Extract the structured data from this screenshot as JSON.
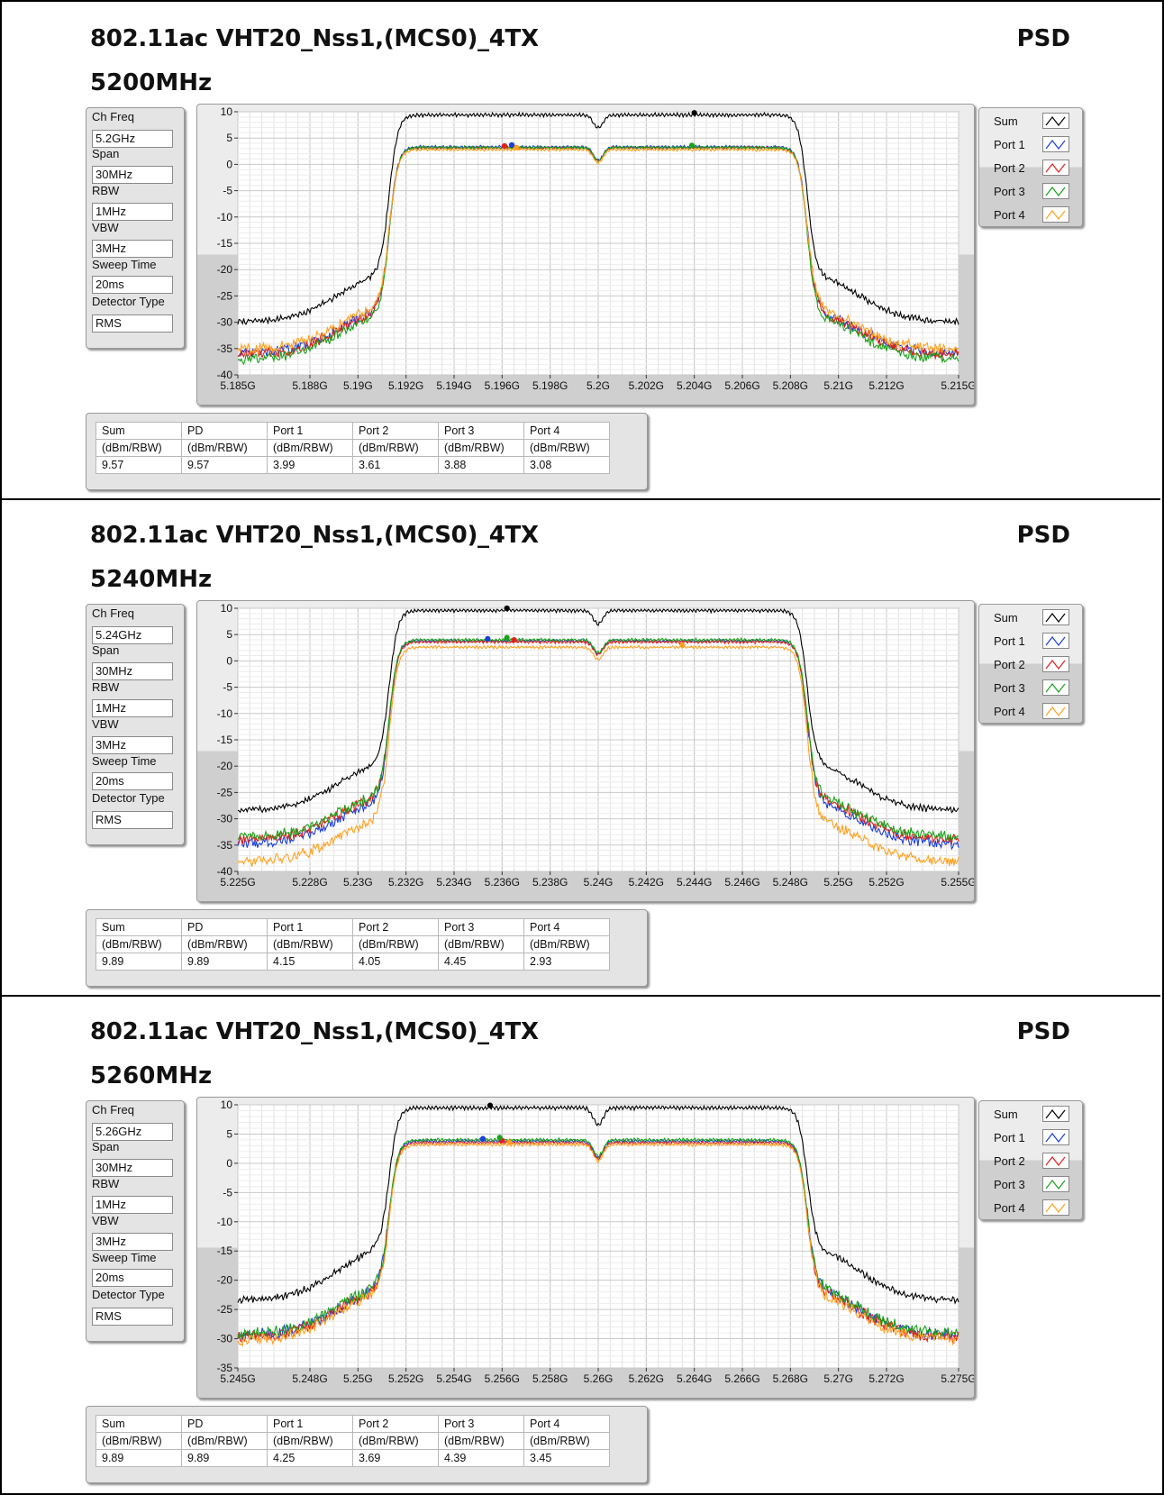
{
  "chart_data": [
    {
      "type": "line",
      "title": "802.11ac VHT20_Nss1,(MCS0)_4TX",
      "subtitle": "5200MHz",
      "label_right": "PSD",
      "xlim": [
        5.185,
        5.215
      ],
      "ylim": [
        -40,
        10
      ],
      "x_ticks": [
        "5.185G",
        "5.188G",
        "5.19G",
        "5.192G",
        "5.194G",
        "5.196G",
        "5.198G",
        "5.2G",
        "5.202G",
        "5.204G",
        "5.206G",
        "5.208G",
        "5.21G",
        "5.212G",
        "5.215G"
      ],
      "x_tick_values": [
        5.185,
        5.188,
        5.19,
        5.192,
        5.194,
        5.196,
        5.198,
        5.2,
        5.202,
        5.204,
        5.206,
        5.208,
        5.21,
        5.212,
        5.215
      ],
      "y_ticks": [
        "10",
        "5",
        "0",
        "-5",
        "-10",
        "-15",
        "-20",
        "-25",
        "-30",
        "-35",
        "-40"
      ],
      "y_tick_values": [
        10,
        5,
        0,
        -5,
        -10,
        -15,
        -20,
        -25,
        -30,
        -35,
        -40
      ],
      "grid": true,
      "legend_position": "right",
      "series": [
        {
          "name": "Sum",
          "color": "#000000",
          "peak": 9.4,
          "floor": -30.0,
          "dip": 2.5,
          "peak_x": 5.204
        },
        {
          "name": "Port 1",
          "color": "#1a3fd6",
          "peak": 3.3,
          "floor": -36.0,
          "dip": 2.5,
          "peak_x": 5.1964
        },
        {
          "name": "Port 2",
          "color": "#e0201a",
          "peak": 3.1,
          "floor": -36.2,
          "dip": 2.5,
          "peak_x": 5.1961
        },
        {
          "name": "Port 3",
          "color": "#19a319",
          "peak": 3.2,
          "floor": -37.0,
          "dip": 2.5,
          "peak_x": 5.2039
        },
        {
          "name": "Port 4",
          "color": "#ffa020",
          "peak": 2.8,
          "floor": -35.2,
          "dip": 2.5,
          "peak_x": 5.1966
        }
      ],
      "params": [
        {
          "label": "Ch Freq",
          "value": "5.2GHz"
        },
        {
          "label": "Span",
          "value": "30MHz"
        },
        {
          "label": "RBW",
          "value": "1MHz"
        },
        {
          "label": "VBW",
          "value": "3MHz"
        },
        {
          "label": "Sweep Time",
          "value": "20ms"
        },
        {
          "label": "Detector Type",
          "value": "RMS"
        }
      ],
      "table": {
        "headers": [
          "Sum",
          "PD",
          "Port 1",
          "Port 2",
          "Port 3",
          "Port 4"
        ],
        "units": [
          "(dBm/RBW)",
          "(dBm/RBW)",
          "(dBm/RBW)",
          "(dBm/RBW)",
          "(dBm/RBW)",
          "(dBm/RBW)"
        ],
        "values": [
          "9.57",
          "9.57",
          "3.99",
          "3.61",
          "3.88",
          "3.08"
        ]
      }
    },
    {
      "type": "line",
      "title": "802.11ac VHT20_Nss1,(MCS0)_4TX",
      "subtitle": "5240MHz",
      "label_right": "PSD",
      "xlim": [
        5.225,
        5.255
      ],
      "ylim": [
        -40,
        10
      ],
      "x_ticks": [
        "5.225G",
        "5.228G",
        "5.23G",
        "5.232G",
        "5.234G",
        "5.236G",
        "5.238G",
        "5.24G",
        "5.242G",
        "5.244G",
        "5.246G",
        "5.248G",
        "5.25G",
        "5.252G",
        "5.255G"
      ],
      "x_tick_values": [
        5.225,
        5.228,
        5.23,
        5.232,
        5.234,
        5.236,
        5.238,
        5.24,
        5.242,
        5.244,
        5.246,
        5.248,
        5.25,
        5.252,
        5.255
      ],
      "y_ticks": [
        "10",
        "5",
        "0",
        "-5",
        "-10",
        "-15",
        "-20",
        "-25",
        "-30",
        "-35",
        "-40"
      ],
      "y_tick_values": [
        10,
        5,
        0,
        -5,
        -10,
        -15,
        -20,
        -25,
        -30,
        -35,
        -40
      ],
      "grid": true,
      "legend_position": "right",
      "series": [
        {
          "name": "Sum",
          "color": "#000000",
          "peak": 9.6,
          "floor": -28.5,
          "dip": 2.6,
          "peak_x": 5.2362
        },
        {
          "name": "Port 1",
          "color": "#1a3fd6",
          "peak": 3.8,
          "floor": -34.8,
          "dip": 2.4,
          "peak_x": 5.2354
        },
        {
          "name": "Port 2",
          "color": "#e0201a",
          "peak": 3.6,
          "floor": -34.0,
          "dip": 2.4,
          "peak_x": 5.2365
        },
        {
          "name": "Port 3",
          "color": "#19a319",
          "peak": 4.0,
          "floor": -33.5,
          "dip": 2.4,
          "peak_x": 5.2362
        },
        {
          "name": "Port 4",
          "color": "#ffa020",
          "peak": 2.6,
          "floor": -38.2,
          "dip": 2.4,
          "peak_x": 5.2435
        }
      ],
      "params": [
        {
          "label": "Ch Freq",
          "value": "5.24GHz"
        },
        {
          "label": "Span",
          "value": "30MHz"
        },
        {
          "label": "RBW",
          "value": "1MHz"
        },
        {
          "label": "VBW",
          "value": "3MHz"
        },
        {
          "label": "Sweep Time",
          "value": "20ms"
        },
        {
          "label": "Detector Type",
          "value": "RMS"
        }
      ],
      "table": {
        "headers": [
          "Sum",
          "PD",
          "Port 1",
          "Port 2",
          "Port 3",
          "Port 4"
        ],
        "units": [
          "(dBm/RBW)",
          "(dBm/RBW)",
          "(dBm/RBW)",
          "(dBm/RBW)",
          "(dBm/RBW)",
          "(dBm/RBW)"
        ],
        "values": [
          "9.89",
          "9.89",
          "4.15",
          "4.05",
          "4.45",
          "2.93"
        ]
      }
    },
    {
      "type": "line",
      "title": "802.11ac VHT20_Nss1,(MCS0)_4TX",
      "subtitle": "5260MHz",
      "label_right": "PSD",
      "xlim": [
        5.245,
        5.275
      ],
      "ylim": [
        -35,
        10
      ],
      "x_ticks": [
        "5.245G",
        "5.248G",
        "5.25G",
        "5.252G",
        "5.254G",
        "5.256G",
        "5.258G",
        "5.26G",
        "5.262G",
        "5.264G",
        "5.266G",
        "5.268G",
        "5.27G",
        "5.272G",
        "5.275G"
      ],
      "x_tick_values": [
        5.245,
        5.248,
        5.25,
        5.252,
        5.254,
        5.256,
        5.258,
        5.26,
        5.262,
        5.264,
        5.266,
        5.268,
        5.27,
        5.272,
        5.275
      ],
      "y_ticks": [
        "10",
        "5",
        "0",
        "-5",
        "-10",
        "-15",
        "-20",
        "-25",
        "-30",
        "-35"
      ],
      "y_tick_values": [
        10,
        5,
        0,
        -5,
        -10,
        -15,
        -20,
        -25,
        -30,
        -35
      ],
      "grid": true,
      "legend_position": "right",
      "series": [
        {
          "name": "Sum",
          "color": "#000000",
          "peak": 9.5,
          "floor": -23.5,
          "dip": 3.0,
          "peak_x": 5.2555
        },
        {
          "name": "Port 1",
          "color": "#1a3fd6",
          "peak": 3.8,
          "floor": -29.5,
          "dip": 2.8,
          "peak_x": 5.2552
        },
        {
          "name": "Port 2",
          "color": "#e0201a",
          "peak": 3.5,
          "floor": -29.8,
          "dip": 2.8,
          "peak_x": 5.256
        },
        {
          "name": "Port 3",
          "color": "#19a319",
          "peak": 4.0,
          "floor": -29.2,
          "dip": 2.8,
          "peak_x": 5.2559
        },
        {
          "name": "Port 4",
          "color": "#ffa020",
          "peak": 3.2,
          "floor": -30.3,
          "dip": 2.8,
          "peak_x": 5.2563
        }
      ],
      "params": [
        {
          "label": "Ch Freq",
          "value": "5.26GHz"
        },
        {
          "label": "Span",
          "value": "30MHz"
        },
        {
          "label": "RBW",
          "value": "1MHz"
        },
        {
          "label": "VBW",
          "value": "3MHz"
        },
        {
          "label": "Sweep Time",
          "value": "20ms"
        },
        {
          "label": "Detector Type",
          "value": "RMS"
        }
      ],
      "table": {
        "headers": [
          "Sum",
          "PD",
          "Port 1",
          "Port 2",
          "Port 3",
          "Port 4"
        ],
        "units": [
          "(dBm/RBW)",
          "(dBm/RBW)",
          "(dBm/RBW)",
          "(dBm/RBW)",
          "(dBm/RBW)",
          "(dBm/RBW)"
        ],
        "values": [
          "9.89",
          "9.89",
          "4.25",
          "3.69",
          "4.39",
          "3.45"
        ]
      }
    }
  ]
}
